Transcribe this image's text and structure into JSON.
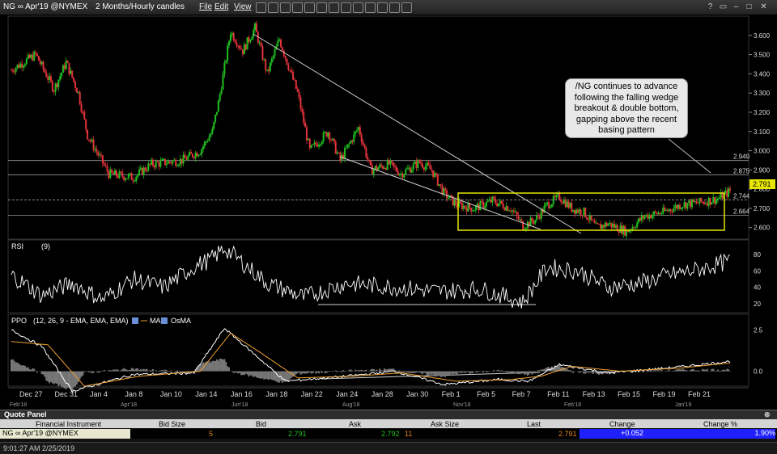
{
  "window": {
    "symbol_title": "NG ∞ Apr'19 @NYMEX",
    "interval_label": "2 Months/Hourly candles",
    "menu": [
      "File",
      "Edit",
      "View"
    ]
  },
  "colors": {
    "up_candle": "#1fbf1f",
    "down_candle": "#e0323a",
    "bullish_box": "#e6e600",
    "ma_line": "#f0a030",
    "osma_area": "#777777",
    "change_bg": "#2020ff"
  },
  "annotation": {
    "lines": [
      "/NG continues to advance",
      "following the falling wedge",
      "breakout & double bottom,",
      "gapping above the recent",
      "basing pattern"
    ]
  },
  "chart_data": [
    {
      "type": "candlestick",
      "title": "NG ∞ Apr'19 @NYMEX",
      "ylim": [
        2.54,
        3.7
      ],
      "y_ticks": [
        "3.600",
        "3.500",
        "3.400",
        "3.300",
        "3.200",
        "3.100",
        "3.000",
        "2.900",
        "2.800",
        "2.700",
        "2.600"
      ],
      "x_ticks": [
        "Dec 27",
        "Dec 31",
        "Jan 4",
        "Jan 8",
        "Jan 10",
        "Jan 14",
        "Jan 16",
        "Jan 18",
        "Jan 22",
        "Jan 24",
        "Jan 28",
        "Jan 30",
        "Feb 1",
        "Feb 5",
        "Feb 7",
        "Feb 11",
        "Feb 13",
        "Feb 15",
        "Feb 19",
        "Feb 21"
      ],
      "secondary_x_ticks": [
        "Feb'18",
        "Apr'18",
        "Jun'18",
        "Aug'18",
        "Nov'18",
        "Feb'18",
        "Jan'19"
      ],
      "horizontal_levels": [
        {
          "value": 2.949,
          "label": "2.949"
        },
        {
          "value": 2.875,
          "label": "2.875"
        },
        {
          "value": 2.744,
          "label": "2.744"
        },
        {
          "value": 2.664,
          "label": "2.664"
        }
      ],
      "last_price": "2.791",
      "anchors": [
        [
          0,
          3.42
        ],
        [
          8,
          3.5
        ],
        [
          14,
          3.32
        ],
        [
          18,
          3.46
        ],
        [
          22,
          3.3
        ],
        [
          25,
          3.08
        ],
        [
          32,
          2.88
        ],
        [
          40,
          2.86
        ],
        [
          46,
          2.93
        ],
        [
          56,
          2.95
        ],
        [
          62,
          3.0
        ],
        [
          66,
          3.1
        ],
        [
          68,
          3.25
        ],
        [
          72,
          3.62
        ],
        [
          76,
          3.52
        ],
        [
          80,
          3.64
        ],
        [
          84,
          3.4
        ],
        [
          88,
          3.58
        ],
        [
          94,
          3.3
        ],
        [
          98,
          3.0
        ],
        [
          104,
          3.1
        ],
        [
          108,
          2.95
        ],
        [
          114,
          3.12
        ],
        [
          118,
          2.9
        ],
        [
          124,
          2.93
        ],
        [
          128,
          2.88
        ],
        [
          134,
          2.94
        ],
        [
          138,
          2.9
        ],
        [
          142,
          2.78
        ],
        [
          146,
          2.72
        ],
        [
          152,
          2.7
        ],
        [
          158,
          2.74
        ],
        [
          164,
          2.7
        ],
        [
          168,
          2.61
        ],
        [
          172,
          2.64
        ],
        [
          176,
          2.72
        ],
        [
          180,
          2.76
        ],
        [
          184,
          2.7
        ],
        [
          188,
          2.68
        ],
        [
          192,
          2.6
        ],
        [
          196,
          2.62
        ],
        [
          202,
          2.58
        ],
        [
          208,
          2.66
        ],
        [
          214,
          2.68
        ],
        [
          220,
          2.72
        ],
        [
          226,
          2.73
        ],
        [
          232,
          2.75
        ],
        [
          236,
          2.79
        ]
      ]
    },
    {
      "type": "line",
      "title": "RSI",
      "params": "(9)",
      "ylim": [
        10,
        95
      ],
      "y_ticks": [
        "80",
        "60",
        "40",
        "20"
      ],
      "series": [
        {
          "name": "RSI",
          "anchors": [
            [
              0,
              55
            ],
            [
              10,
              30
            ],
            [
              20,
              45
            ],
            [
              30,
              25
            ],
            [
              40,
              50
            ],
            [
              50,
              40
            ],
            [
              60,
              65
            ],
            [
              66,
              75
            ],
            [
              70,
              88
            ],
            [
              76,
              70
            ],
            [
              84,
              45
            ],
            [
              96,
              28
            ],
            [
              110,
              45
            ],
            [
              126,
              40
            ],
            [
              140,
              35
            ],
            [
              154,
              38
            ],
            [
              168,
              22
            ],
            [
              176,
              65
            ],
            [
              186,
              60
            ],
            [
              196,
              40
            ],
            [
              206,
              45
            ],
            [
              216,
              55
            ],
            [
              226,
              62
            ],
            [
              236,
              72
            ]
          ]
        }
      ]
    },
    {
      "type": "line",
      "title": "PPO",
      "params": "(12, 26, 9 - EMA, EMA, EMA)",
      "legend": [
        "MA",
        "OsMA"
      ],
      "ylim": [
        -0.9,
        3.3
      ],
      "y_ticks": [
        "2.5",
        "0.0"
      ],
      "series": [
        {
          "name": "PPO",
          "anchors": [
            [
              0,
              2.5
            ],
            [
              10,
              1.5
            ],
            [
              20,
              -1.2
            ],
            [
              40,
              -0.2
            ],
            [
              60,
              -0.1
            ],
            [
              70,
              2.6
            ],
            [
              80,
              1.0
            ],
            [
              90,
              -0.6
            ],
            [
              110,
              -0.3
            ],
            [
              126,
              0.0
            ],
            [
              142,
              -0.8
            ],
            [
              160,
              -0.5
            ],
            [
              170,
              -0.6
            ],
            [
              180,
              0.4
            ],
            [
              196,
              -0.1
            ],
            [
              216,
              0.2
            ],
            [
              236,
              0.6
            ]
          ]
        },
        {
          "name": "MA",
          "anchors": [
            [
              0,
              1.8
            ],
            [
              12,
              1.6
            ],
            [
              24,
              -0.9
            ],
            [
              42,
              -0.3
            ],
            [
              62,
              0.0
            ],
            [
              72,
              2.3
            ],
            [
              82,
              1.1
            ],
            [
              94,
              -0.4
            ],
            [
              112,
              -0.3
            ],
            [
              128,
              -0.1
            ],
            [
              146,
              -0.6
            ],
            [
              164,
              -0.5
            ],
            [
              174,
              -0.3
            ],
            [
              184,
              0.3
            ],
            [
              200,
              0.0
            ],
            [
              220,
              0.2
            ],
            [
              236,
              0.5
            ]
          ]
        }
      ]
    }
  ],
  "quote_panel": {
    "title": "Quote Panel",
    "columns": [
      "Financial Instrument",
      "Bid Size",
      "Bid",
      "Ask",
      "Ask Size",
      "Last",
      "Change",
      "Change %"
    ],
    "row": {
      "instrument": "NG ∞ Apr'19 @NYMEX",
      "bid_size": "5",
      "bid": "2.791",
      "ask": "2.792",
      "ask_size": "11",
      "last": "2.791",
      "change": "+0.052",
      "change_pct": "1.90%"
    }
  },
  "status_bar": {
    "timestamp": "9:01:27 AM 2/25/2019"
  }
}
